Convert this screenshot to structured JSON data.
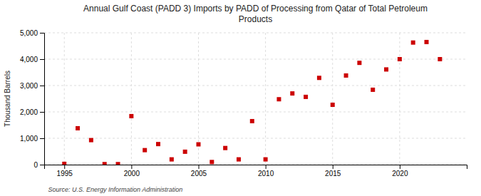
{
  "chart_data": {
    "type": "scatter",
    "title": "Annual Gulf Coast (PADD 3) Imports by PADD of Processing from Qatar of Total Petroleum\nProducts",
    "ylabel": "Thousand Barrels",
    "source": "Source: U.S. Energy Information Administration",
    "x": [
      1995,
      1996,
      1997,
      1998,
      1999,
      2000,
      2001,
      2002,
      2003,
      2004,
      2005,
      2006,
      2007,
      2008,
      2009,
      2010,
      2011,
      2012,
      2013,
      2014,
      2015,
      2016,
      2017,
      2018,
      2019,
      2020,
      2021,
      2022,
      2023
    ],
    "values": [
      30,
      1380,
      930,
      20,
      20,
      1840,
      550,
      780,
      200,
      490,
      770,
      100,
      630,
      200,
      1650,
      200,
      2480,
      2700,
      2570,
      3290,
      2270,
      3380,
      3860,
      2840,
      3610,
      4000,
      4630,
      4650,
      4000
    ],
    "color": "#cc0000",
    "marker": "square",
    "xlim": [
      1993.5,
      2025
    ],
    "ylim": [
      0,
      5000
    ],
    "xticks": [
      1995,
      2000,
      2005,
      2010,
      2015,
      2020
    ],
    "yticks": [
      0,
      {
        "value": 1000,
        "label": "1,000"
      },
      {
        "value": 2000,
        "label": "2,000"
      },
      {
        "value": 3000,
        "label": "3,000"
      },
      {
        "value": 4000,
        "label": "4,000"
      },
      {
        "value": 5000,
        "label": "5,000"
      }
    ],
    "grid": true
  }
}
